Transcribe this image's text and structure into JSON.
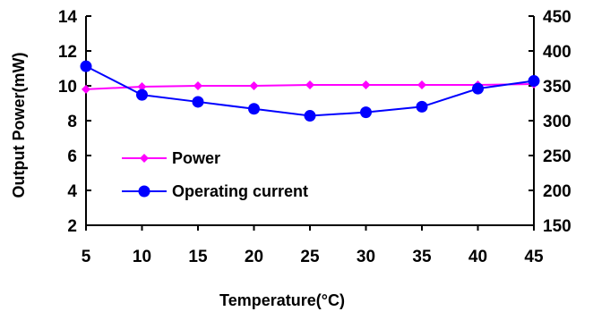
{
  "chart_data": {
    "type": "line",
    "title": "",
    "xlabel": "Temperature(°C)",
    "ylabel": "Output Power(mW)",
    "y2label": "",
    "x": [
      5,
      10,
      15,
      20,
      25,
      30,
      35,
      40,
      45
    ],
    "xlim": [
      5,
      45
    ],
    "ylim": [
      2,
      14
    ],
    "y2lim": [
      150,
      450
    ],
    "x_ticks": [
      "5",
      "10",
      "15",
      "20",
      "25",
      "30",
      "35",
      "40",
      "45"
    ],
    "y_ticks": [
      "2",
      "4",
      "6",
      "8",
      "10",
      "12",
      "14"
    ],
    "y2_ticks": [
      "150",
      "200",
      "250",
      "300",
      "350",
      "400",
      "450"
    ],
    "grid": false,
    "legend_position": "center-left",
    "series": [
      {
        "name": "Power",
        "axis": "left",
        "color": "#FF00FF",
        "marker": "diamond",
        "values": [
          9.8,
          9.95,
          10.0,
          10.0,
          10.05,
          10.05,
          10.05,
          10.05,
          10.1
        ]
      },
      {
        "name": "Operating current",
        "axis": "right",
        "color": "#0000FF",
        "marker": "circle",
        "values": [
          378,
          337,
          327,
          317,
          307,
          312,
          320,
          346,
          357
        ]
      }
    ]
  }
}
